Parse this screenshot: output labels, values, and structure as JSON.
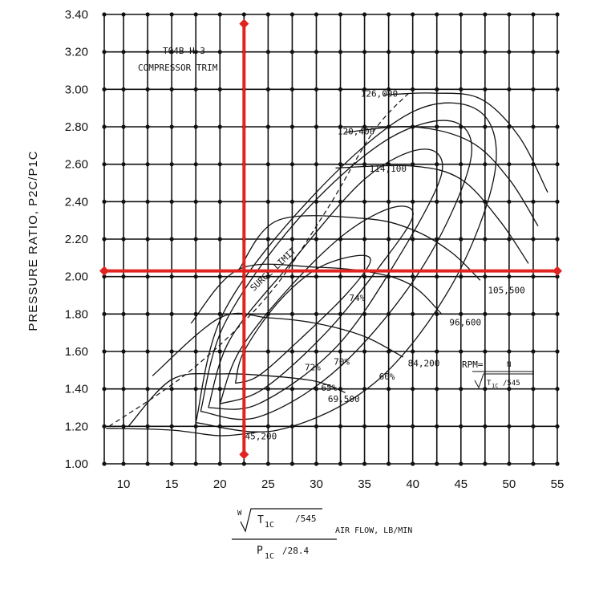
{
  "chart_data": {
    "type": "line",
    "title_lines": [
      "T04B H-3",
      "COMPRESSOR TRIM"
    ],
    "ylabel": "PRESSURE RATIO, P2C/P1C",
    "xlabel": {
      "numerator_w": "W",
      "numerator_t": "T",
      "numerator_sub": "1C",
      "numerator_div": "/545",
      "denominator_p": "P",
      "denominator_sub": "1C",
      "denominator_div": "/28.4",
      "units": "AIR FLOW, LB/MIN"
    },
    "xlim": [
      8,
      55
    ],
    "ylim": [
      1.0,
      3.4
    ],
    "x_ticks": [
      "10",
      "15",
      "20",
      "25",
      "30",
      "35",
      "40",
      "45",
      "50",
      "55"
    ],
    "y_ticks": [
      "1.00",
      "1.20",
      "1.40",
      "1.60",
      "1.80",
      "2.00",
      "2.20",
      "2.40",
      "2.60",
      "2.80",
      "3.00",
      "3.20",
      "3.40"
    ],
    "x_grid_values": [
      8,
      10,
      12.5,
      15,
      17.5,
      20,
      22.5,
      25,
      27.5,
      30,
      32.5,
      35,
      37.5,
      40,
      42.5,
      45,
      47.5,
      50,
      52.5,
      55
    ],
    "y_grid_values": [
      1.0,
      1.2,
      1.4,
      1.6,
      1.8,
      2.0,
      2.2,
      2.4,
      2.6,
      2.8,
      3.0,
      3.2,
      3.4
    ],
    "speed_lines": [
      {
        "name": "45,200",
        "label_at": [
          22.6,
          1.13
        ],
        "points": [
          [
            8.2,
            1.19
          ],
          [
            15,
            1.18
          ],
          [
            20,
            1.15
          ],
          [
            24,
            1.17
          ]
        ]
      },
      {
        "name": "69,500",
        "label_at": [
          31.2,
          1.33
        ],
        "points": [
          [
            10.5,
            1.2
          ],
          [
            15,
            1.45
          ],
          [
            20,
            1.48
          ],
          [
            25,
            1.47
          ],
          [
            30,
            1.44
          ],
          [
            33,
            1.38
          ]
        ]
      },
      {
        "name": "84,200",
        "label_at": [
          39.5,
          1.52
        ],
        "points": [
          [
            13,
            1.47
          ],
          [
            20,
            1.78
          ],
          [
            25,
            1.78
          ],
          [
            30,
            1.75
          ],
          [
            35,
            1.68
          ],
          [
            39,
            1.57
          ]
        ]
      },
      {
        "name": "96,600",
        "label_at": [
          43.8,
          1.74
        ],
        "points": [
          [
            17,
            1.75
          ],
          [
            22,
            2.04
          ],
          [
            30,
            2.05
          ],
          [
            36,
            2.02
          ],
          [
            40,
            1.95
          ],
          [
            43,
            1.8
          ]
        ]
      },
      {
        "name": "105,500",
        "label_at": [
          47.8,
          1.91
        ],
        "points": [
          [
            22,
            2.04
          ],
          [
            26,
            2.3
          ],
          [
            35,
            2.31
          ],
          [
            40,
            2.25
          ],
          [
            44,
            2.13
          ],
          [
            47,
            1.98
          ]
        ]
      },
      {
        "name": "114,100",
        "label_at": [
          35.5,
          2.56
        ],
        "points": [
          [
            32,
            2.58
          ],
          [
            40,
            2.59
          ],
          [
            45,
            2.52
          ],
          [
            49,
            2.3
          ],
          [
            52,
            2.07
          ]
        ]
      },
      {
        "name": "120,400",
        "label_at": [
          32.2,
          2.76
        ],
        "points": [
          [
            33,
            2.77
          ],
          [
            40,
            2.8
          ],
          [
            46,
            2.72
          ],
          [
            50,
            2.52
          ],
          [
            53,
            2.27
          ]
        ]
      },
      {
        "name": "126,000",
        "label_at": [
          34.6,
          2.96
        ],
        "points": [
          [
            37,
            2.97
          ],
          [
            42,
            2.98
          ],
          [
            47,
            2.95
          ],
          [
            51,
            2.75
          ],
          [
            54,
            2.45
          ]
        ]
      }
    ],
    "surge_limit": {
      "label": "SURGE LIMIT",
      "points": [
        [
          8.5,
          1.2
        ],
        [
          17,
          1.5
        ],
        [
          25,
          1.9
        ],
        [
          31,
          2.35
        ],
        [
          36,
          2.78
        ],
        [
          40,
          3.0
        ]
      ]
    },
    "efficiency_islands": [
      {
        "name": "74%",
        "label_at": [
          33.4,
          1.87
        ],
        "points": [
          [
            21.6,
            1.43
          ],
          [
            22.5,
            1.6
          ],
          [
            26,
            1.86
          ],
          [
            30,
            2.04
          ],
          [
            34,
            2.11
          ],
          [
            35.6,
            2.08
          ],
          [
            33,
            1.9
          ],
          [
            28,
            1.65
          ],
          [
            24,
            1.47
          ],
          [
            21.6,
            1.43
          ]
        ]
      },
      {
        "name": "72%",
        "label_at": [
          28.8,
          1.5
        ],
        "points": [
          [
            20,
            1.32
          ],
          [
            22,
            1.6
          ],
          [
            27,
            1.93
          ],
          [
            33,
            2.23
          ],
          [
            38,
            2.37
          ],
          [
            40,
            2.32
          ],
          [
            36.5,
            2.05
          ],
          [
            31,
            1.7
          ],
          [
            24.5,
            1.4
          ],
          [
            20,
            1.32
          ]
        ]
      },
      {
        "name": "70%",
        "label_at": [
          31.8,
          1.53
        ],
        "points": [
          [
            18.8,
            1.3
          ],
          [
            21,
            1.66
          ],
          [
            27,
            2.05
          ],
          [
            35,
            2.52
          ],
          [
            41,
            2.68
          ],
          [
            43,
            2.55
          ],
          [
            38.5,
            2.1
          ],
          [
            32,
            1.62
          ],
          [
            24,
            1.32
          ],
          [
            18.8,
            1.3
          ]
        ]
      },
      {
        "name": "65%",
        "label_at": [
          30.5,
          1.39
        ],
        "points": [
          [
            18,
            1.28
          ],
          [
            20.5,
            1.75
          ],
          [
            28,
            2.3
          ],
          [
            37,
            2.72
          ],
          [
            44,
            2.83
          ],
          [
            46,
            2.62
          ],
          [
            41,
            2.05
          ],
          [
            32.5,
            1.52
          ],
          [
            24,
            1.25
          ],
          [
            18,
            1.28
          ]
        ]
      },
      {
        "name": "60%",
        "label_at": [
          36.5,
          1.45
        ],
        "points": [
          [
            17.5,
            1.22
          ],
          [
            20.5,
            1.82
          ],
          [
            30,
            2.45
          ],
          [
            40,
            2.88
          ],
          [
            47,
            2.88
          ],
          [
            48.5,
            2.55
          ],
          [
            44,
            1.95
          ],
          [
            36,
            1.43
          ],
          [
            26,
            1.18
          ],
          [
            17.5,
            1.22
          ]
        ]
      }
    ],
    "rpm_label": {
      "text": "RPM=",
      "n": "N",
      "t": "T",
      "sub": "1C",
      "div": "/545"
    },
    "operating_point": {
      "x": 22.5,
      "y": 2.03,
      "color": "#e0241f"
    },
    "grid": true
  }
}
